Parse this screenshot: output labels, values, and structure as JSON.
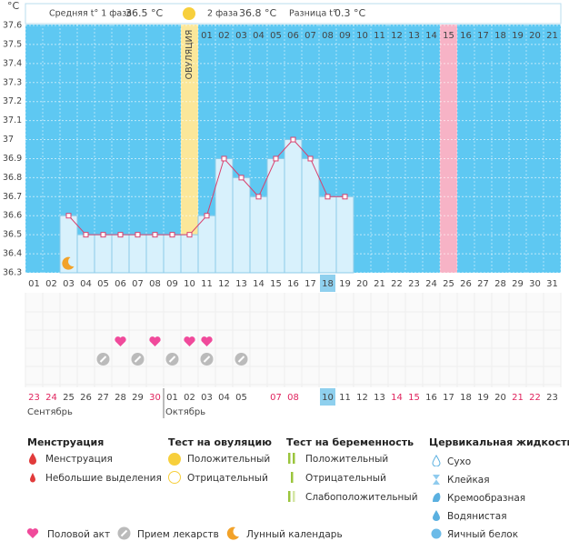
{
  "header": {
    "phase1_label": "Средняя t° 1 фаза",
    "phase1_value": "36.5 °C",
    "phase2_label": "2 фаза",
    "phase2_value": "36.8 °C",
    "diff_label": "Разница t°",
    "diff_value": "0.3 °C"
  },
  "chart_data": {
    "type": "line",
    "y_unit": "°C",
    "categories": [
      "01",
      "02",
      "03",
      "04",
      "05",
      "06",
      "07",
      "08",
      "09",
      "10",
      "11",
      "12",
      "13",
      "14",
      "15",
      "16",
      "17",
      "18",
      "19",
      "20",
      "21",
      "22",
      "23",
      "24",
      "25",
      "26",
      "27",
      "28",
      "29",
      "30",
      "31"
    ],
    "values": [
      null,
      null,
      36.6,
      36.5,
      36.5,
      36.5,
      36.5,
      36.5,
      36.5,
      36.5,
      36.6,
      36.9,
      36.8,
      36.7,
      36.9,
      37.0,
      36.9,
      36.7,
      36.7,
      null,
      null,
      null,
      null,
      null,
      null,
      null,
      null,
      null,
      null,
      null,
      null
    ],
    "color": "#d9416e",
    "ylim": [
      36.3,
      37.6
    ],
    "yticks": [
      36.3,
      36.4,
      36.5,
      36.6,
      36.7,
      36.8,
      36.9,
      37,
      37.1,
      37.2,
      37.3,
      37.4,
      37.5,
      37.6
    ],
    "grid": true,
    "cycle_days": [
      null,
      null,
      null,
      null,
      null,
      null,
      null,
      null,
      null,
      null,
      "01",
      "02",
      "03",
      "04",
      "05",
      "06",
      "07",
      "08",
      "09",
      "10",
      "11",
      "12",
      "13",
      "14",
      "15",
      "16",
      "17",
      "18",
      "19",
      "20",
      "21"
    ],
    "ovulation_index": 9,
    "ovulation_label": "ОВУЛЯЦИЯ",
    "pink_index": 24,
    "selected_index": 17,
    "dates": [
      "23",
      "24",
      "25",
      "26",
      "27",
      "28",
      "29",
      "30",
      "01",
      "02",
      "03",
      "04",
      "05",
      null,
      "07",
      "08",
      null,
      "10",
      "11",
      "12",
      "13",
      "14",
      "15",
      "16",
      "17",
      "18",
      "19",
      "20",
      "21",
      "22",
      "23"
    ],
    "weekend_indices": [
      0,
      1,
      7,
      14,
      15,
      21,
      22,
      28,
      29
    ],
    "months": [
      {
        "label": "Сентябрь",
        "index": 0
      },
      {
        "label": "Октябрь",
        "index": 8
      }
    ],
    "moon_index": 2,
    "heart_indices": [
      5,
      7,
      9,
      10
    ],
    "pill_indices": [
      4,
      6,
      8,
      10,
      12
    ]
  },
  "legend": {
    "menstruation_title": "Менструация",
    "menstruation": "Менструация",
    "spotting": "Небольшие выделения",
    "ovulation_title": "Тест на овуляцию",
    "ov_positive": "Положительный",
    "ov_negative": "Отрицательный",
    "pregnancy_title": "Тест на беременность",
    "pr_positive": "Положительный",
    "pr_negative": "Отрицательный",
    "pr_weak": "Слабоположительный",
    "cervical_title": "Цервикальная жидкость",
    "dry": "Сухо",
    "sticky": "Клейкая",
    "creamy": "Кремообразная",
    "watery": "Водянистая",
    "eggwhite": "Яичный белок",
    "sex": "Половой акт",
    "meds": "Прием лекарств",
    "lunar": "Лунный календарь"
  }
}
